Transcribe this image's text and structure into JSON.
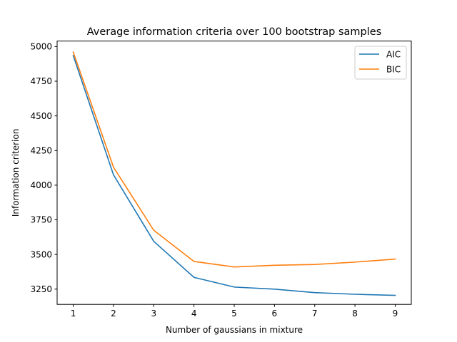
{
  "chart_data": {
    "type": "line",
    "title": "Average information criteria over 100 bootstrap samples",
    "xlabel": "Number of gaussians in mixture",
    "ylabel": "Information criterion",
    "x": [
      1,
      2,
      3,
      4,
      5,
      6,
      7,
      8,
      9
    ],
    "xlim": [
      0.6,
      9.4
    ],
    "ylim": [
      3140,
      5040
    ],
    "xticks": [
      1,
      2,
      3,
      4,
      5,
      6,
      7,
      8,
      9
    ],
    "yticks": [
      3250,
      3500,
      3750,
      4000,
      4250,
      4500,
      4750,
      5000
    ],
    "legend_position": "top-right",
    "grid": false,
    "series": [
      {
        "name": "AIC",
        "color": "#1f77b4",
        "values": [
          4935,
          4075,
          3595,
          3335,
          3265,
          3250,
          3225,
          3213,
          3205
        ]
      },
      {
        "name": "BIC",
        "color": "#ff7f0e",
        "values": [
          4960,
          4130,
          3675,
          3450,
          3410,
          3422,
          3428,
          3445,
          3467
        ]
      }
    ]
  }
}
